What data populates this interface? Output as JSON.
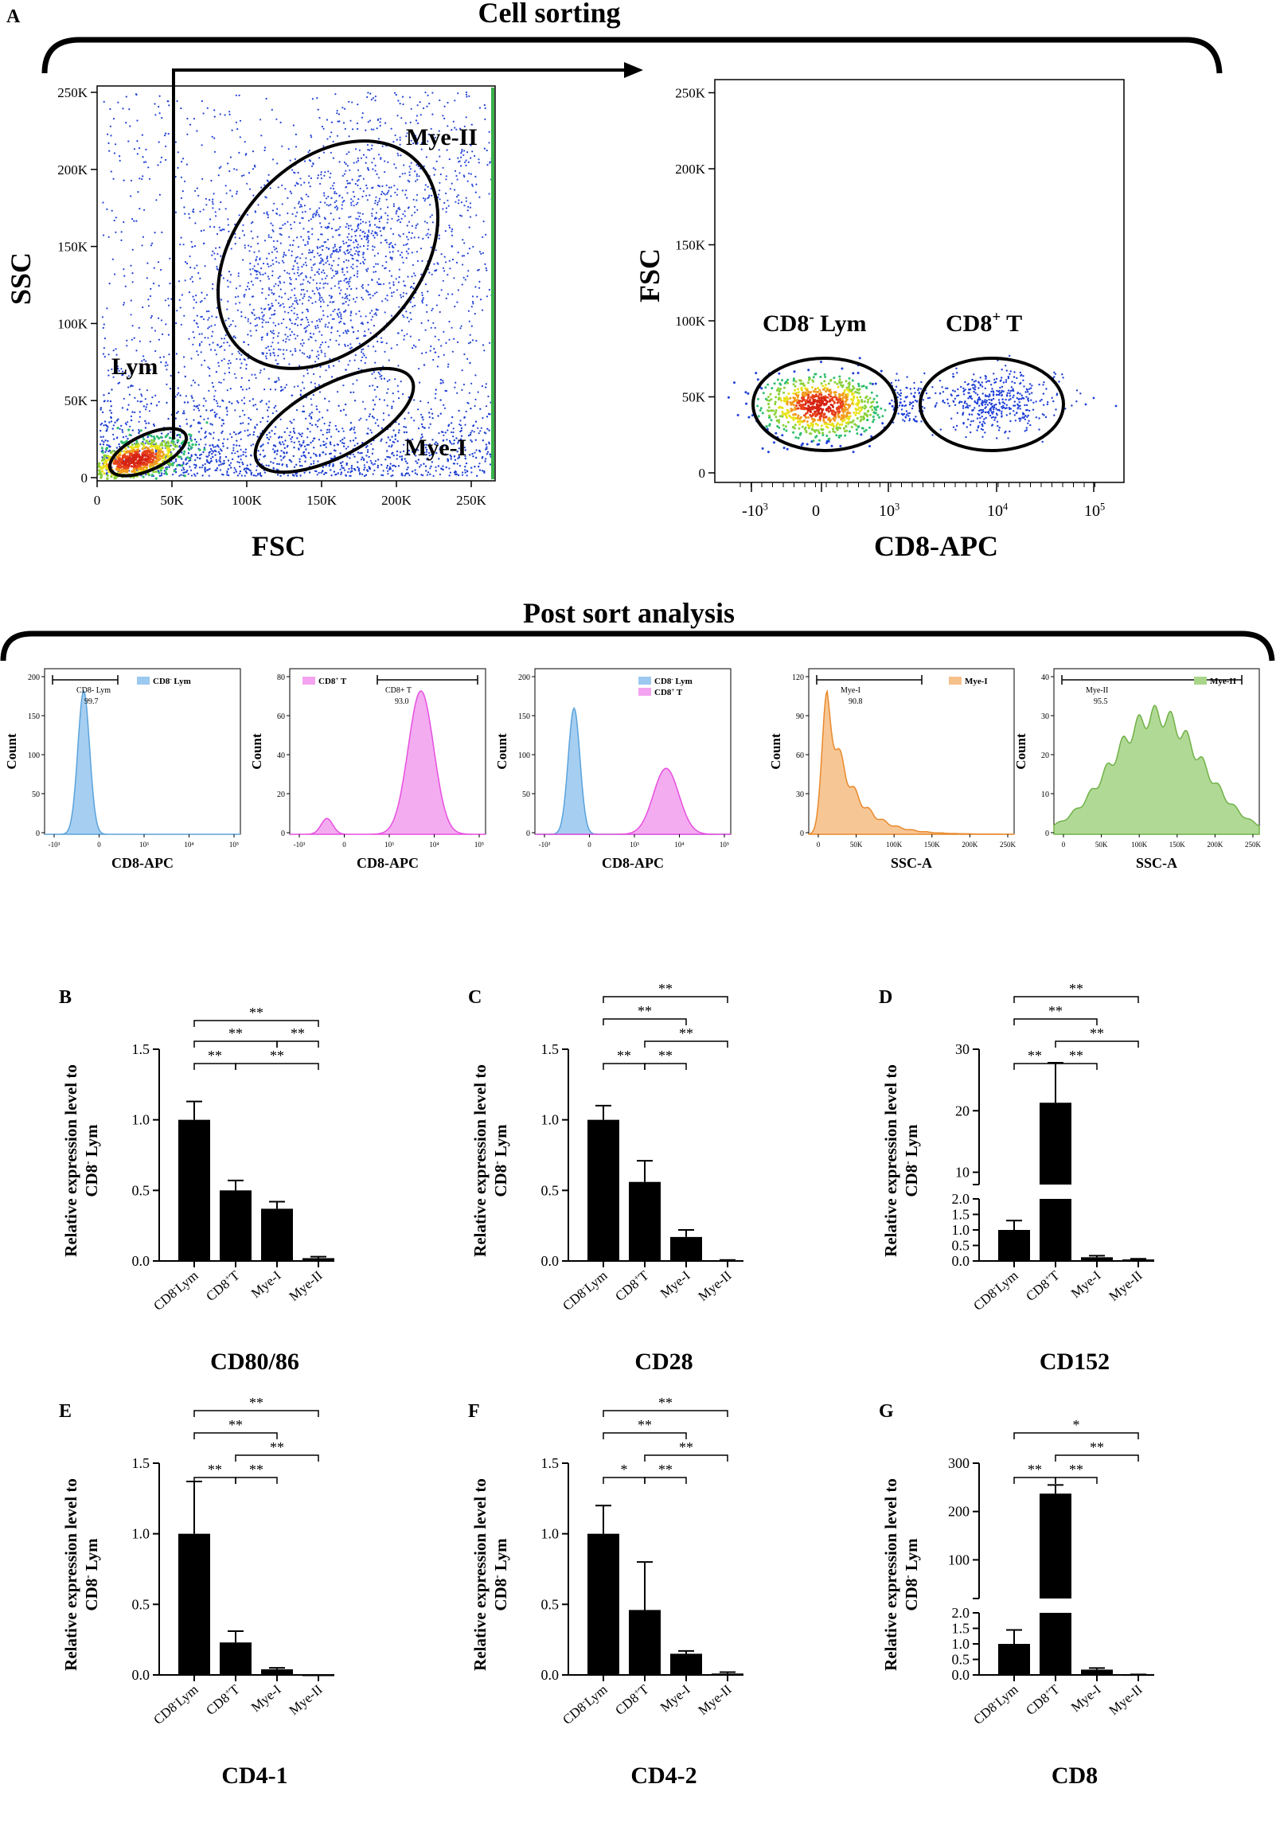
{
  "panel_letters": {
    "a": "A",
    "b": "B",
    "c": "C",
    "d": "D",
    "e": "E",
    "f": "F",
    "g": "G"
  },
  "colors": {
    "blue_hist": "#9cc9ef",
    "blue_hist_line": "#5aa3dc",
    "pink_hist": "#f3a3ef",
    "pink_hist_line": "#e64fdf",
    "orange_hist": "#f6c08a",
    "orange_hist_line": "#e8892c",
    "green_hist": "#a9d58b",
    "green_hist_line": "#70b247",
    "dot_blue": "#1e3fd6",
    "bar": "#000000"
  },
  "cell_sorting": {
    "title": "Cell sorting",
    "scatter1": {
      "xlabel": "FSC",
      "ylabel": "SSC",
      "x_ticks": [
        "0",
        "50K",
        "100K",
        "150K",
        "200K",
        "250K"
      ],
      "y_ticks": [
        "0",
        "50K",
        "100K",
        "150K",
        "200K",
        "250K"
      ],
      "gates": [
        "Lym",
        "Mye-I",
        "Mye-II"
      ]
    },
    "scatter2": {
      "xlabel": "CD8-APC",
      "ylabel": "FSC",
      "y_ticks": [
        "0",
        "50K",
        "100K",
        "150K",
        "200K",
        "250K"
      ],
      "x_ticks": [
        {
          "base": "-10",
          "exp": "3"
        },
        {
          "base": "0",
          "exp": ""
        },
        {
          "base": "10",
          "exp": "3"
        },
        {
          "base": "10",
          "exp": "4"
        },
        {
          "base": "10",
          "exp": "5"
        }
      ],
      "gates": [
        {
          "pre": "CD8",
          "sup": "-",
          "post": " Lym"
        },
        {
          "pre": "CD8",
          "sup": "+",
          "post": " T"
        }
      ]
    }
  },
  "post_sort": {
    "title": "Post sort analysis",
    "ylabel": "Count",
    "histograms": [
      {
        "xlabel": "CD8-APC",
        "y_ticks": [
          "0",
          "50",
          "100",
          "150",
          "200"
        ],
        "x_ticks": [
          "-10³",
          "0",
          "10³",
          "10⁴",
          "10⁵"
        ],
        "gate_label": "CD8- Lym",
        "gate_value": "99.7",
        "legend": [
          {
            "pre": "CD8",
            "sup": "-",
            "post": " Lym",
            "color": "#9cc9ef"
          }
        ]
      },
      {
        "xlabel": "CD8-APC",
        "y_ticks": [
          "0",
          "20",
          "40",
          "60",
          "80"
        ],
        "x_ticks": [
          "-10³",
          "0",
          "10³",
          "10⁴",
          "10⁵"
        ],
        "gate_label": "CD8+ T",
        "gate_value": "93.0",
        "legend": [
          {
            "pre": "CD8",
            "sup": "+",
            "post": " T",
            "color": "#f3a3ef"
          }
        ]
      },
      {
        "xlabel": "CD8-APC",
        "y_ticks": [
          "0",
          "50",
          "100",
          "150",
          "200"
        ],
        "x_ticks": [
          "-10³",
          "0",
          "10³",
          "10⁴",
          "10⁵"
        ],
        "gate_label": "",
        "gate_value": "",
        "legend": [
          {
            "pre": "CD8",
            "sup": "-",
            "post": " Lym",
            "color": "#9cc9ef"
          },
          {
            "pre": "CD8",
            "sup": "+",
            "post": " T",
            "color": "#f3a3ef"
          }
        ]
      },
      {
        "xlabel": "SSC-A",
        "y_ticks": [
          "0",
          "30",
          "60",
          "90",
          "120"
        ],
        "x_ticks": [
          "0",
          "50K",
          "100K",
          "150K",
          "200K",
          "250K"
        ],
        "gate_label": "Mye-I",
        "gate_value": "90.8",
        "legend": [
          {
            "pre": "Mye-I",
            "sup": "",
            "post": "",
            "color": "#f6c08a"
          }
        ]
      },
      {
        "xlabel": "SSC-A",
        "y_ticks": [
          "0",
          "10",
          "20",
          "30",
          "40"
        ],
        "x_ticks": [
          "0",
          "50K",
          "100K",
          "150K",
          "200K",
          "250K"
        ],
        "gate_label": "Mye-II",
        "gate_value": "95.5",
        "legend": [
          {
            "pre": "Mye-II",
            "sup": "",
            "post": "",
            "color": "#a9d58b"
          }
        ]
      }
    ]
  },
  "ylabel_line1": "Relative expression level to",
  "ylabel_line2": {
    "pre": "CD8",
    "sup": "-",
    "post": " Lym"
  },
  "categories": [
    {
      "pre": "CD8",
      "sup": "-",
      "post": "Lym"
    },
    {
      "pre": "CD8",
      "sup": "+",
      "post": "T"
    },
    {
      "pre": "Mye-I",
      "sup": "",
      "post": ""
    },
    {
      "pre": "Mye-II",
      "sup": "",
      "post": ""
    }
  ],
  "chart_data": [
    {
      "type": "bar",
      "panel": "B",
      "title": "CD80/86",
      "categories": [
        "CD8- Lym",
        "CD8+ T",
        "Mye-I",
        "Mye-II"
      ],
      "values": [
        1.0,
        0.5,
        0.37,
        0.02
      ],
      "errors": [
        0.13,
        0.07,
        0.05,
        0.01
      ],
      "ylim": [
        0,
        1.5
      ],
      "yticks": [
        "0.0",
        "0.5",
        "1.0",
        "1.5"
      ],
      "significance": [
        {
          "from": 0,
          "to": 1,
          "label": "**",
          "level": 0
        },
        {
          "from": 1,
          "to": 3,
          "label": "**",
          "level": 0
        },
        {
          "from": 0,
          "to": 2,
          "label": "**",
          "level": 1
        },
        {
          "from": 2,
          "to": 3,
          "label": "**",
          "level": 1
        },
        {
          "from": 0,
          "to": 3,
          "label": "**",
          "level": 2
        }
      ]
    },
    {
      "type": "bar",
      "panel": "C",
      "title": "CD28",
      "categories": [
        "CD8- Lym",
        "CD8+ T",
        "Mye-I",
        "Mye-II"
      ],
      "values": [
        1.0,
        0.56,
        0.17,
        0.005
      ],
      "errors": [
        0.1,
        0.15,
        0.05,
        0.002
      ],
      "ylim": [
        0,
        1.5
      ],
      "yticks": [
        "0.0",
        "0.5",
        "1.0",
        "1.5"
      ],
      "significance": [
        {
          "from": 0,
          "to": 1,
          "label": "**",
          "level": 0
        },
        {
          "from": 1,
          "to": 2,
          "label": "**",
          "level": 0
        },
        {
          "from": 1,
          "to": 3,
          "label": "**",
          "level": 1
        },
        {
          "from": 0,
          "to": 2,
          "label": "**",
          "level": 2
        },
        {
          "from": 0,
          "to": 3,
          "label": "**",
          "level": 3
        }
      ]
    },
    {
      "type": "bar",
      "panel": "D",
      "title": "CD152",
      "broken_axis": true,
      "categories": [
        "CD8- Lym",
        "CD8+ T",
        "Mye-I",
        "Mye-II"
      ],
      "values": [
        1.0,
        21.3,
        0.12,
        0.05
      ],
      "errors": [
        0.3,
        6.5,
        0.05,
        0.02
      ],
      "lower_ylim": [
        0,
        2
      ],
      "lower_yticks": [
        "0.0",
        "0.5",
        "1.0",
        "1.5",
        "2.0"
      ],
      "upper_ylim": [
        8,
        30
      ],
      "upper_yticks": [
        "10",
        "20",
        "30"
      ],
      "significance": [
        {
          "from": 0,
          "to": 1,
          "label": "**",
          "level": 0
        },
        {
          "from": 1,
          "to": 2,
          "label": "**",
          "level": 0
        },
        {
          "from": 1,
          "to": 3,
          "label": "**",
          "level": 1
        },
        {
          "from": 0,
          "to": 2,
          "label": "**",
          "level": 2
        },
        {
          "from": 0,
          "to": 3,
          "label": "**",
          "level": 3
        }
      ]
    },
    {
      "type": "bar",
      "panel": "E",
      "title": "CD4-1",
      "categories": [
        "CD8- Lym",
        "CD8+ T",
        "Mye-I",
        "Mye-II"
      ],
      "values": [
        1.0,
        0.23,
        0.04,
        0.0
      ],
      "errors": [
        0.37,
        0.08,
        0.01,
        0.0
      ],
      "ylim": [
        0,
        1.5
      ],
      "yticks": [
        "0.0",
        "0.5",
        "1.0",
        "1.5"
      ],
      "significance": [
        {
          "from": 0,
          "to": 1,
          "label": "**",
          "level": 0
        },
        {
          "from": 1,
          "to": 2,
          "label": "**",
          "level": 0
        },
        {
          "from": 1,
          "to": 3,
          "label": "**",
          "level": 1
        },
        {
          "from": 0,
          "to": 2,
          "label": "**",
          "level": 2
        },
        {
          "from": 0,
          "to": 3,
          "label": "**",
          "level": 3
        }
      ]
    },
    {
      "type": "bar",
      "panel": "F",
      "title": "CD4-2",
      "categories": [
        "CD8- Lym",
        "CD8+ T",
        "Mye-I",
        "Mye-II"
      ],
      "values": [
        1.0,
        0.46,
        0.15,
        0.01
      ],
      "errors": [
        0.2,
        0.34,
        0.02,
        0.01
      ],
      "ylim": [
        0,
        1.5
      ],
      "yticks": [
        "0.0",
        "0.5",
        "1.0",
        "1.5"
      ],
      "significance": [
        {
          "from": 0,
          "to": 1,
          "label": "*",
          "level": 0
        },
        {
          "from": 1,
          "to": 2,
          "label": "**",
          "level": 0
        },
        {
          "from": 1,
          "to": 3,
          "label": "**",
          "level": 1
        },
        {
          "from": 0,
          "to": 2,
          "label": "**",
          "level": 2
        },
        {
          "from": 0,
          "to": 3,
          "label": "**",
          "level": 3
        }
      ]
    },
    {
      "type": "bar",
      "panel": "G",
      "title": "CD8",
      "broken_axis": true,
      "categories": [
        "CD8- Lym",
        "CD8+ T",
        "Mye-I",
        "Mye-II"
      ],
      "values": [
        1.0,
        237,
        0.17,
        0.01
      ],
      "errors": [
        0.45,
        18,
        0.05,
        0.005
      ],
      "lower_ylim": [
        0,
        2
      ],
      "lower_yticks": [
        "0.0",
        "0.5",
        "1.0",
        "1.5",
        "2.0"
      ],
      "upper_ylim": [
        20,
        300
      ],
      "upper_yticks": [
        "100",
        "200",
        "300"
      ],
      "significance": [
        {
          "from": 0,
          "to": 1,
          "label": "**",
          "level": 0
        },
        {
          "from": 1,
          "to": 2,
          "label": "**",
          "level": 0
        },
        {
          "from": 1,
          "to": 3,
          "label": "**",
          "level": 1
        },
        {
          "from": 0,
          "to": 3,
          "label": "*",
          "level": 2
        }
      ]
    }
  ]
}
